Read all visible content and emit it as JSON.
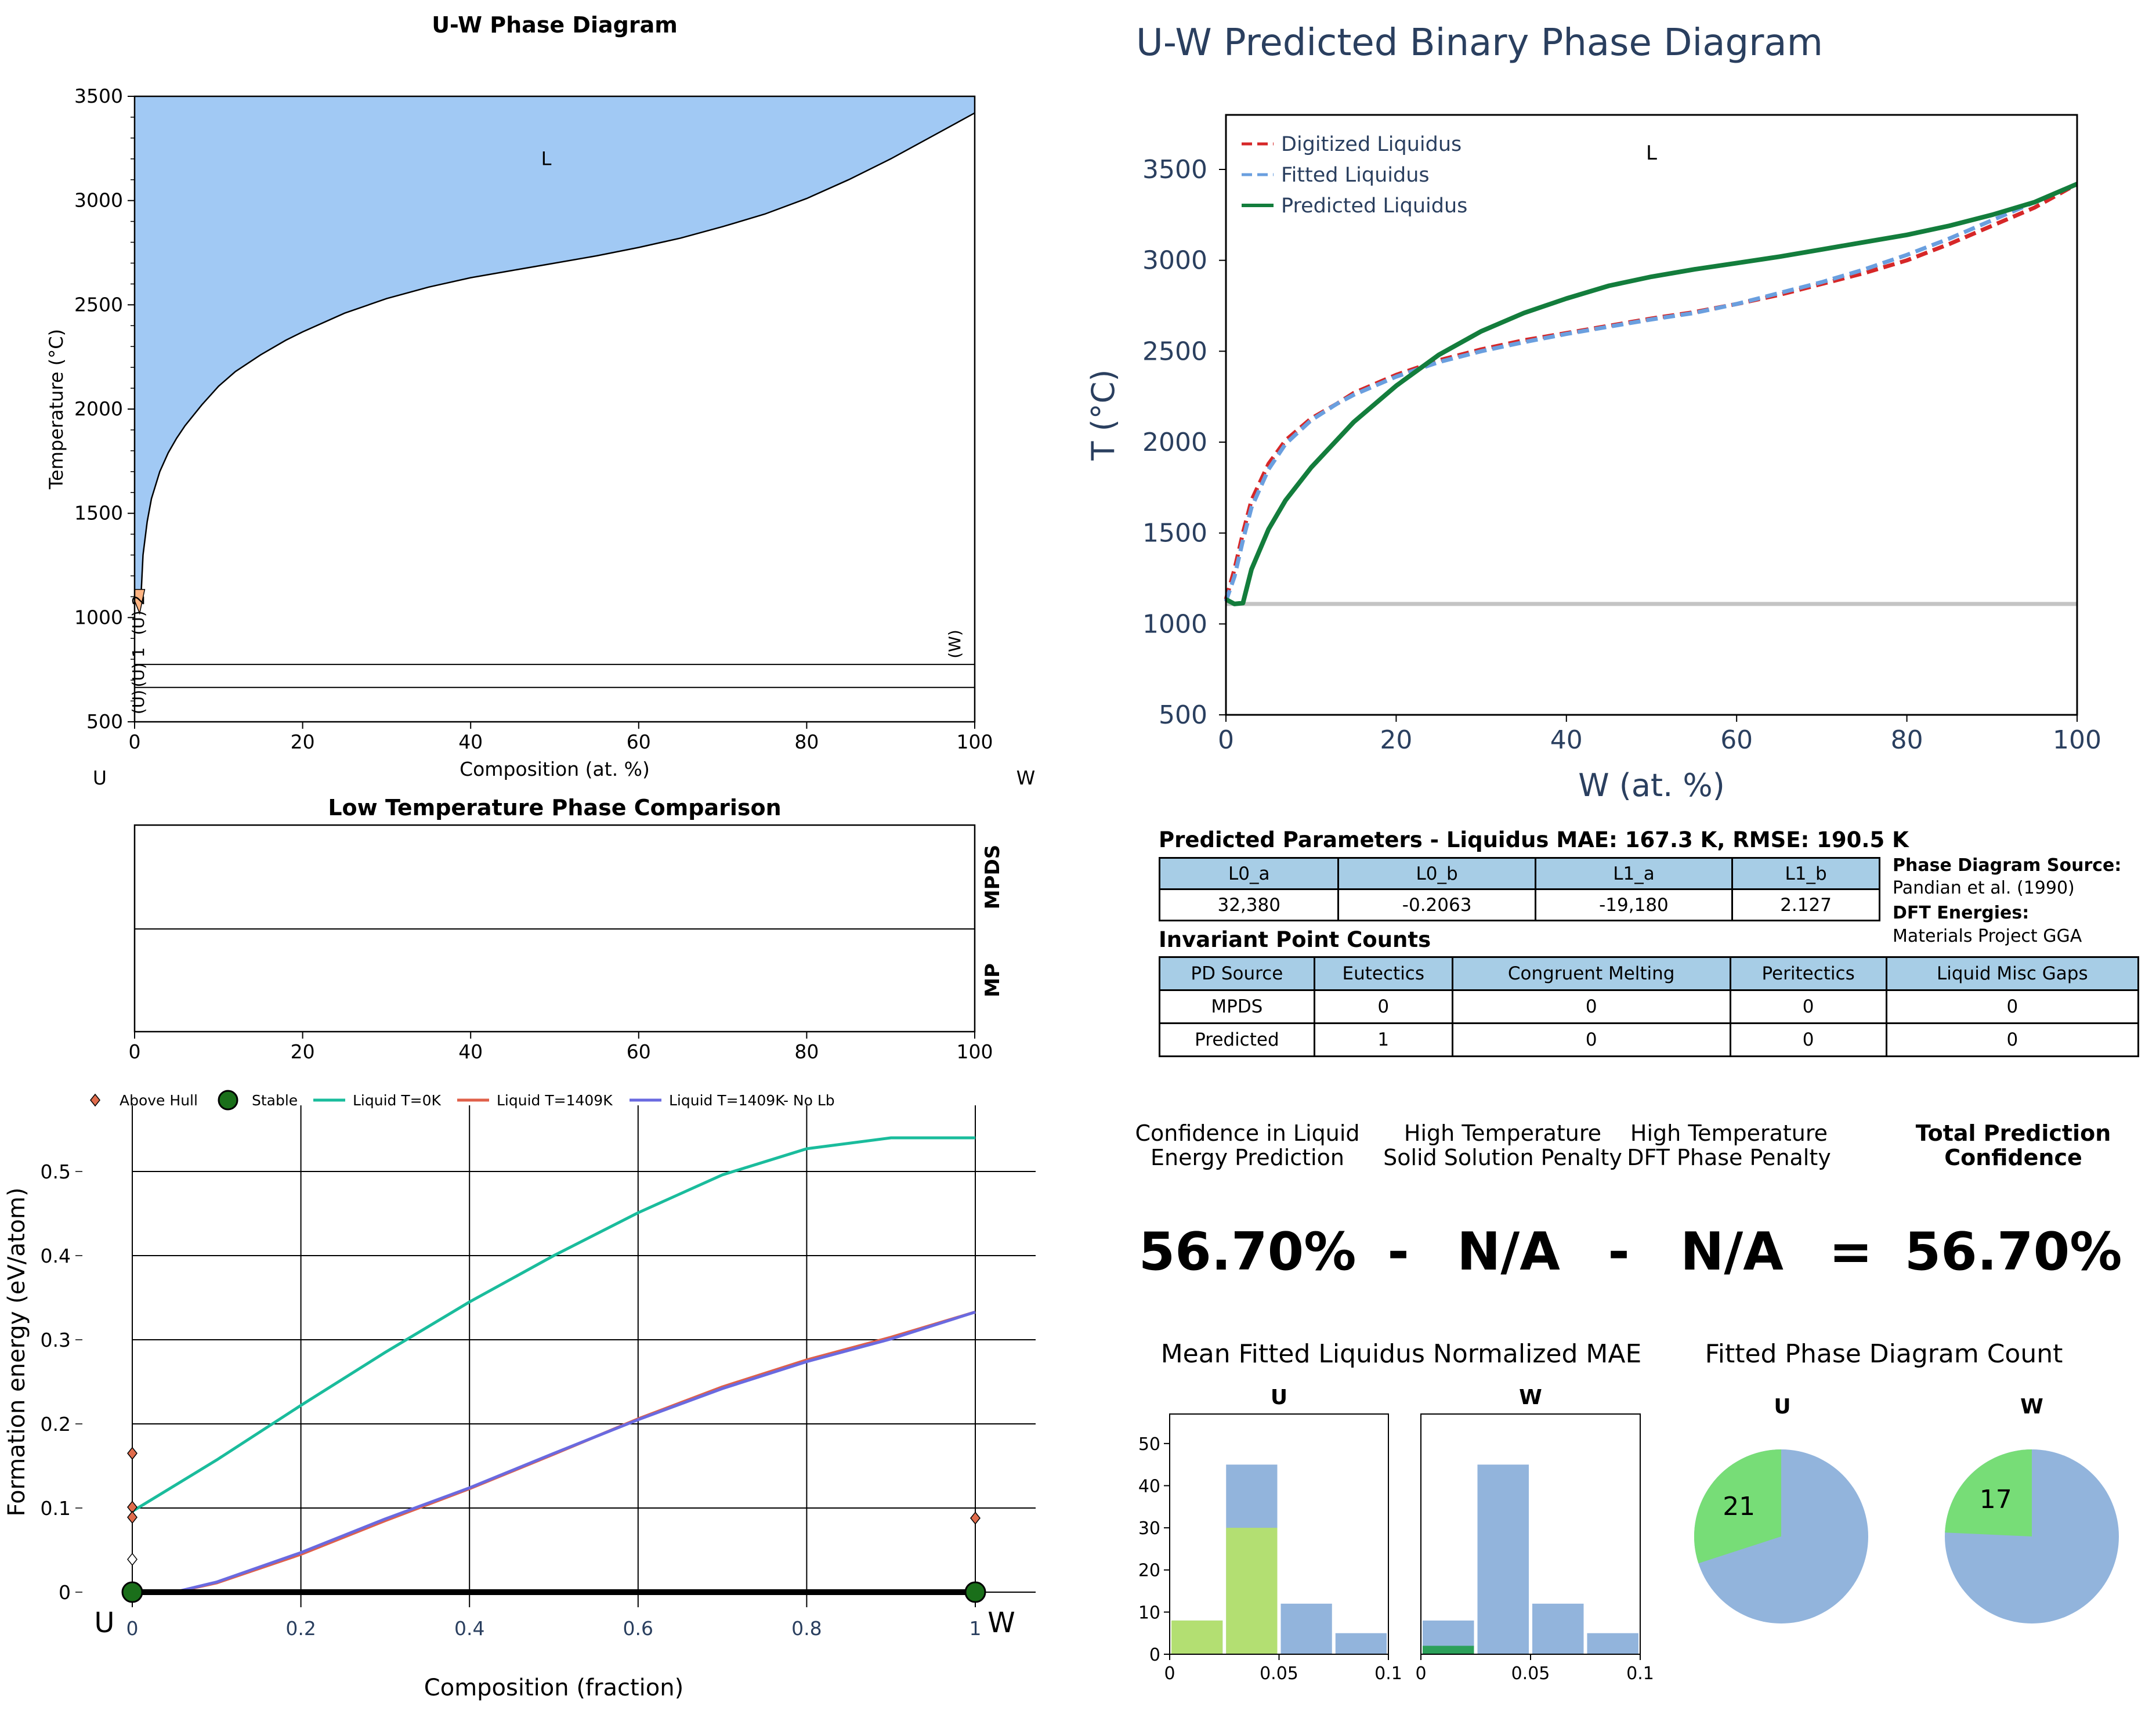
{
  "chart_data": [
    {
      "id": "uw_phase_diagram",
      "type": "area",
      "title": "U-W Phase Diagram",
      "xlabel": "Composition (at. %)",
      "ylabel": "Temperature (°C)",
      "xlim": [
        0,
        100
      ],
      "ylim": [
        500,
        3500
      ],
      "xticks": [
        0,
        20,
        40,
        60,
        80,
        100
      ],
      "yticks": [
        500,
        1000,
        1500,
        2000,
        2500,
        3000,
        3500
      ],
      "left_element": "U",
      "right_element": "W",
      "regions": [
        {
          "label": "L",
          "label_x": 49,
          "label_y": 3170,
          "color": "#a1c9f4"
        }
      ],
      "liquidus": {
        "x": [
          0.8,
          1.0,
          1.5,
          2,
          3,
          4,
          5,
          6,
          8,
          10,
          12,
          15,
          18,
          20,
          25,
          30,
          35,
          40,
          45,
          50,
          55,
          60,
          65,
          70,
          75,
          80,
          85,
          90,
          95,
          100
        ],
        "y": [
          1135,
          1300,
          1460,
          1570,
          1700,
          1790,
          1860,
          1920,
          2020,
          2110,
          2180,
          2260,
          2330,
          2370,
          2460,
          2530,
          2585,
          2630,
          2665,
          2700,
          2735,
          2775,
          2820,
          2875,
          2935,
          3010,
          3100,
          3200,
          3310,
          3420
        ]
      },
      "solvus_lines": [
        775,
        665
      ],
      "phase_labels": [
        "(U) 2",
        "(U) 1",
        "(U)",
        "(W)"
      ],
      "small_region_color": "#ffb482"
    },
    {
      "id": "predicted_binary",
      "type": "line",
      "title": "U-W Predicted Binary Phase Diagram",
      "xlabel": "W (at. %)",
      "ylabel": "T (°C)",
      "xlim": [
        0,
        100
      ],
      "ylim": [
        500,
        3800
      ],
      "xticks": [
        0,
        20,
        40,
        60,
        80,
        100
      ],
      "yticks": [
        500,
        1000,
        1500,
        2000,
        2500,
        3000,
        3500
      ],
      "region_label": {
        "text": "L",
        "x": 50,
        "y": 3555
      },
      "legend": "top-left",
      "horizontal_line": {
        "y": 1110,
        "color": "#c4c4c4"
      },
      "series": [
        {
          "name": "Digitized Liquidus",
          "color": "#d62728",
          "dash": true,
          "x": [
            0,
            1,
            2,
            3,
            5,
            7,
            10,
            13,
            15,
            20,
            25,
            30,
            35,
            40,
            45,
            50,
            55,
            60,
            65,
            70,
            75,
            80,
            85,
            90,
            95,
            100
          ],
          "y": [
            1135,
            1300,
            1500,
            1680,
            1880,
            2010,
            2130,
            2210,
            2270,
            2370,
            2450,
            2510,
            2560,
            2600,
            2640,
            2680,
            2715,
            2760,
            2810,
            2870,
            2930,
            3000,
            3090,
            3190,
            3290,
            3420
          ]
        },
        {
          "name": "Fitted Liquidus",
          "color": "#6a9fdf",
          "dash": true,
          "x": [
            0,
            1,
            2,
            3,
            5,
            7,
            10,
            13,
            15,
            20,
            25,
            30,
            35,
            40,
            45,
            50,
            55,
            60,
            65,
            70,
            75,
            80,
            85,
            90,
            95,
            100
          ],
          "y": [
            1125,
            1260,
            1460,
            1640,
            1850,
            1990,
            2120,
            2210,
            2260,
            2360,
            2440,
            2500,
            2550,
            2595,
            2635,
            2675,
            2710,
            2760,
            2820,
            2880,
            2950,
            3030,
            3120,
            3220,
            3320,
            3420
          ]
        },
        {
          "name": "Predicted Liquidus",
          "color": "#137d3c",
          "dash": false,
          "x": [
            0,
            1,
            2,
            3,
            5,
            7,
            10,
            15,
            20,
            25,
            30,
            35,
            40,
            45,
            50,
            55,
            60,
            65,
            70,
            75,
            80,
            85,
            90,
            95,
            100
          ],
          "y": [
            1135,
            1110,
            1115,
            1300,
            1520,
            1680,
            1860,
            2110,
            2310,
            2480,
            2610,
            2710,
            2790,
            2860,
            2910,
            2950,
            2985,
            3020,
            3060,
            3100,
            3140,
            3190,
            3250,
            3320,
            3420
          ]
        }
      ]
    },
    {
      "id": "low_temp_comparison",
      "type": "bar",
      "title": "Low Temperature Phase Comparison",
      "xlim": [
        0,
        100
      ],
      "xticks": [
        0,
        20,
        40,
        60,
        80,
        100
      ],
      "rows": [
        "MPDS",
        "MP"
      ]
    },
    {
      "id": "formation_energy",
      "type": "scatter",
      "xlabel": "Composition (fraction)",
      "ylabel": "Formation energy (eV/atom)",
      "xlim": [
        0,
        1
      ],
      "ylim": [
        0,
        0.55
      ],
      "xticks": [
        "0",
        "0.2",
        "0.4",
        "0.6",
        "0.8",
        "1"
      ],
      "yticks": [
        "0",
        "0.1",
        "0.2",
        "0.3",
        "0.4",
        "0.5"
      ],
      "legend": "top",
      "end_labels": [
        "U",
        "W"
      ],
      "above_hull": {
        "name": "Above Hull",
        "x": [
          0,
          0,
          0,
          1
        ],
        "y": [
          0.165,
          0.101,
          0.089,
          0.088
        ]
      },
      "above_hull_open": {
        "x": [
          0
        ],
        "y": [
          0.039
        ]
      },
      "stable": {
        "name": "Stable",
        "x": [
          0,
          1
        ],
        "y": [
          0,
          0
        ]
      },
      "series": [
        {
          "name": "Liquid T=0K",
          "color": "#1abc9c",
          "x": [
            0,
            0.1,
            0.2,
            0.3,
            0.4,
            0.5,
            0.6,
            0.7,
            0.8,
            0.9,
            1.0
          ],
          "y": [
            0.096,
            0.157,
            0.222,
            0.285,
            0.345,
            0.4,
            0.451,
            0.496,
            0.527,
            0.54,
            0.54
          ]
        },
        {
          "name": "Liquid T=1409K",
          "color": "#e0604a",
          "x": [
            0.05,
            0.1,
            0.2,
            0.3,
            0.4,
            0.5,
            0.6,
            0.7,
            0.8,
            0.9,
            1.0
          ],
          "y": [
            0,
            0.011,
            0.045,
            0.085,
            0.123,
            0.164,
            0.206,
            0.244,
            0.276,
            0.303,
            0.333
          ]
        },
        {
          "name": "Liquid T=1409K- No Lb",
          "color": "#6a6ae0",
          "x": [
            0.05,
            0.1,
            0.2,
            0.3,
            0.4,
            0.5,
            0.6,
            0.7,
            0.8,
            0.9,
            1.0
          ],
          "y": [
            0,
            0.012,
            0.047,
            0.087,
            0.124,
            0.165,
            0.205,
            0.242,
            0.274,
            0.301,
            0.333
          ]
        }
      ]
    },
    {
      "id": "mae_hist",
      "type": "bar",
      "title": "Mean Fitted Liquidus Normalized MAE",
      "panels": [
        {
          "name": "U",
          "bins": [
            0,
            0.025,
            0.05,
            0.075,
            0.1
          ],
          "all": [
            8,
            45,
            12,
            5
          ],
          "highlight": [
            8,
            30,
            0,
            0
          ],
          "highlight_color": "#b3df72"
        },
        {
          "name": "W",
          "bins": [
            0,
            0.025,
            0.05,
            0.075,
            0.1
          ],
          "all": [
            8,
            45,
            12,
            5
          ],
          "highlight": [
            2,
            0,
            0,
            0
          ],
          "highlight_color": "#2ca05a"
        }
      ],
      "ylim": [
        0,
        57
      ],
      "yticks": [
        "0",
        "10",
        "20",
        "30",
        "40",
        "50"
      ],
      "xticks": [
        "0",
        "0.05",
        "0.1"
      ]
    },
    {
      "id": "pd_count",
      "type": "pie",
      "title": "Fitted Phase Diagram Count",
      "panels": [
        {
          "name": "U",
          "count": 21,
          "total": 70
        },
        {
          "name": "W",
          "count": 17,
          "total": 70
        }
      ],
      "colors": {
        "count": "#77dd77",
        "rest": "#92b4dc"
      }
    }
  ],
  "params": {
    "title": "Predicted Parameters - Liquidus MAE: 167.3 K, RMSE: 190.5 K",
    "headers": [
      "L0_a",
      "L0_b",
      "L1_a",
      "L1_b"
    ],
    "values": [
      "32,380",
      "-0.2063",
      "-19,180",
      "2.127"
    ]
  },
  "sources": {
    "pd_label": "Phase Diagram Source:",
    "pd_value": "Pandian et al. (1990)",
    "dft_label": "DFT Energies:",
    "dft_value": "Materials Project GGA"
  },
  "invariants": {
    "title": "Invariant Point Counts",
    "headers": [
      "PD Source",
      "Eutectics",
      "Congruent Melting",
      "Peritectics",
      "Liquid Misc Gaps"
    ],
    "rows": [
      [
        "MPDS",
        "0",
        "0",
        "0",
        "0"
      ],
      [
        "Predicted",
        "1",
        "0",
        "0",
        "0"
      ]
    ]
  },
  "confidence": {
    "h1": "Confidence in Liquid",
    "h1b": "Energy Prediction",
    "h2": "High Temperature",
    "h2b": "Solid Solution Penalty",
    "h3": "High Temperature",
    "h3b": "DFT Phase Penalty",
    "h4": "Total Prediction",
    "h4b": "Confidence",
    "v1": "56.70%",
    "op1": "-",
    "v2": "N/A",
    "op2": "-",
    "v3": "N/A",
    "op3": "=",
    "v4": "56.70%"
  }
}
